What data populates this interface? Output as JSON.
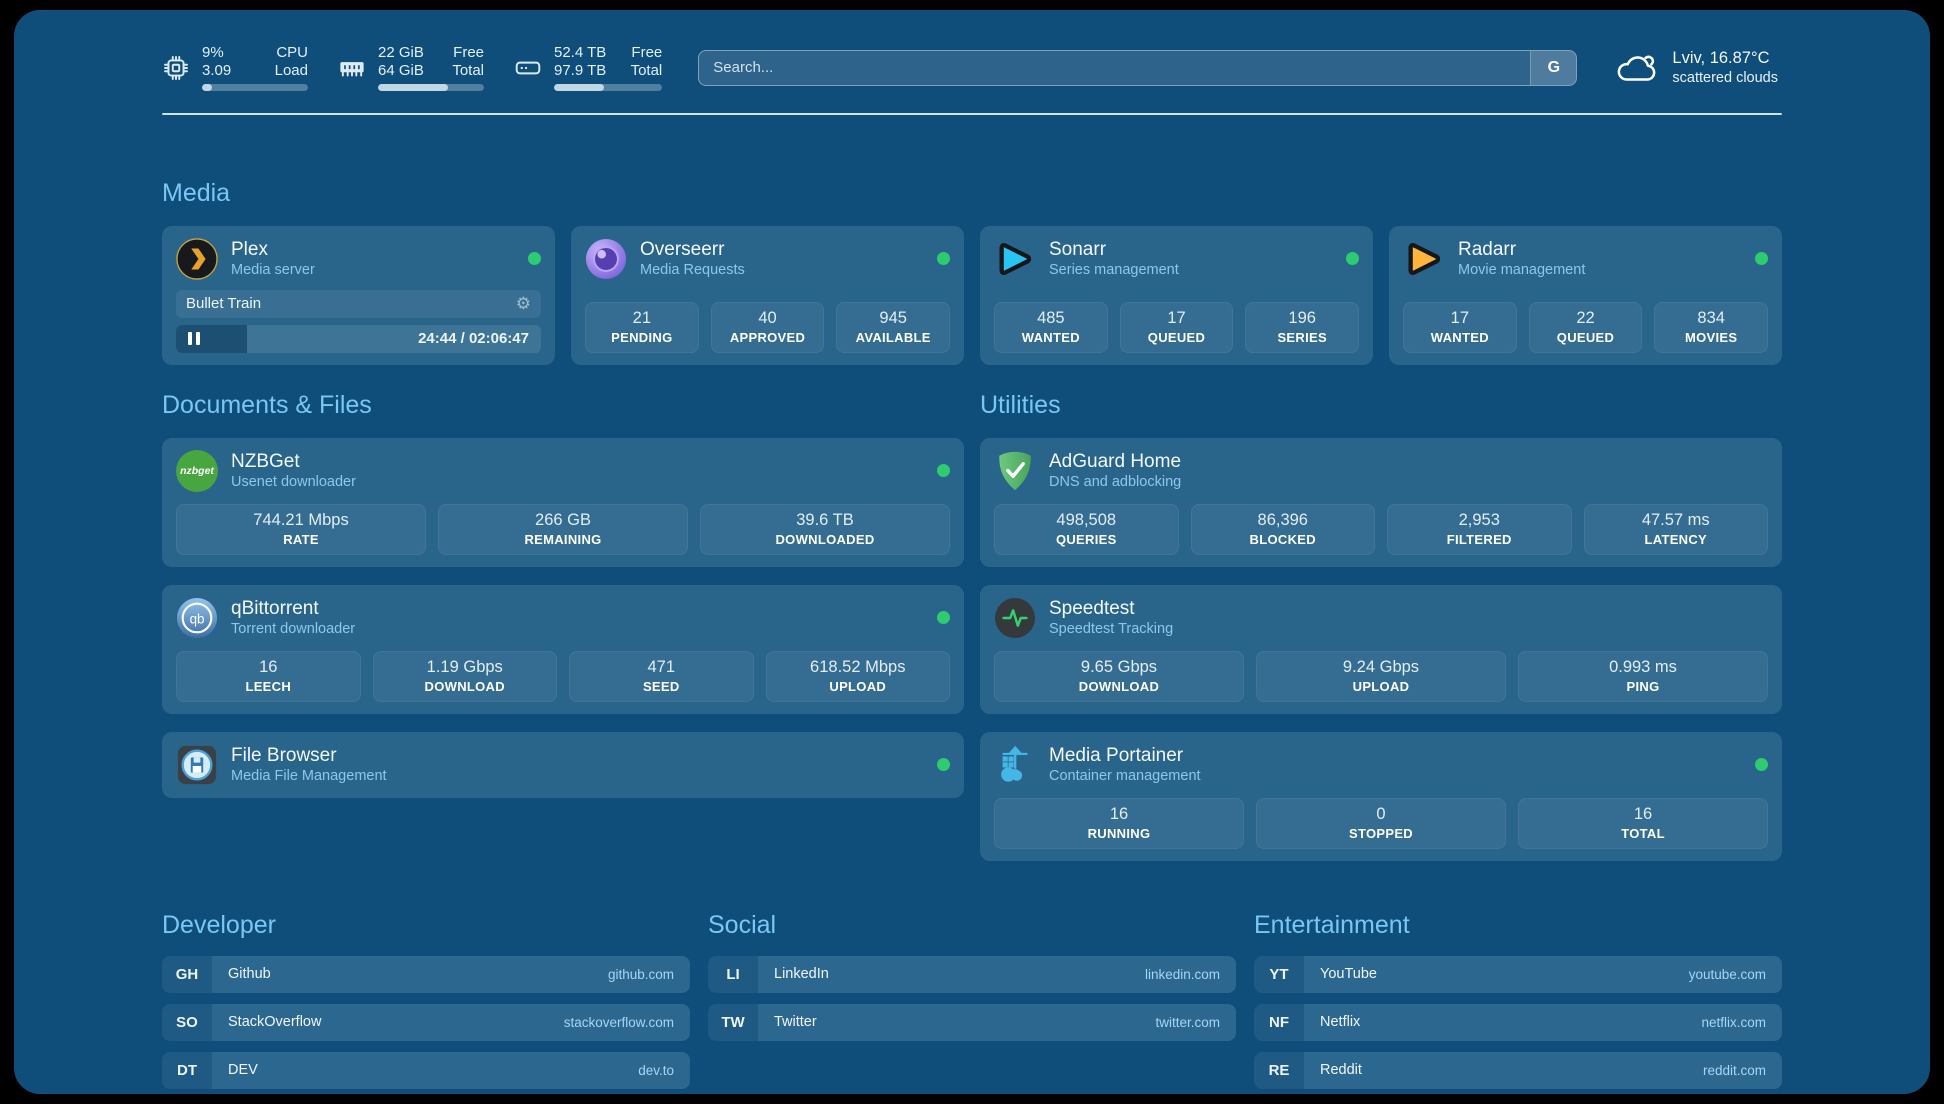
{
  "colors": {
    "status_online": "#2ecb70",
    "section_title": "#79c7f4",
    "board_background": "#0f4e7b",
    "card_background": "#29658b"
  },
  "header": {
    "system_stats": [
      {
        "icon": "cpu-icon",
        "rows": [
          {
            "value": "9%",
            "label": "CPU"
          },
          {
            "value": "3.09",
            "label": "Load"
          }
        ],
        "progress_percent": 9
      },
      {
        "icon": "memory-icon",
        "rows": [
          {
            "value": "22 GiB",
            "label": "Free"
          },
          {
            "value": "64 GiB",
            "label": "Total"
          }
        ],
        "progress_percent": 66
      },
      {
        "icon": "disk-icon",
        "rows": [
          {
            "value": "52.4 TB",
            "label": "Free"
          },
          {
            "value": "97.9 TB",
            "label": "Total"
          }
        ],
        "progress_percent": 46
      }
    ],
    "search": {
      "placeholder": "Search...",
      "engine_button_label": "G"
    },
    "weather": {
      "icon": "cloud-icon",
      "location_temperature": "Lviv, 16.87°C",
      "condition": "scattered clouds"
    }
  },
  "sections": {
    "media": {
      "title": "Media",
      "cards": [
        {
          "icon": "plex-icon",
          "name": "Plex",
          "description": "Media server",
          "status_dot": true,
          "stats": [],
          "now_playing": {
            "title": "Bullet Train",
            "time": "24:44 / 02:06:47",
            "progress_percent": 19.5
          }
        },
        {
          "icon": "overseerr-icon",
          "name": "Overseerr",
          "description": "Media Requests",
          "status_dot": true,
          "stats": [
            {
              "value": "21",
              "label": "PENDING"
            },
            {
              "value": "40",
              "label": "APPROVED"
            },
            {
              "value": "945",
              "label": "AVAILABLE"
            }
          ]
        },
        {
          "icon": "sonarr-icon",
          "name": "Sonarr",
          "description": "Series management",
          "status_dot": true,
          "stats": [
            {
              "value": "485",
              "label": "WANTED"
            },
            {
              "value": "17",
              "label": "QUEUED"
            },
            {
              "value": "196",
              "label": "SERIES"
            }
          ]
        },
        {
          "icon": "radarr-icon",
          "name": "Radarr",
          "description": "Movie management",
          "status_dot": true,
          "stats": [
            {
              "value": "17",
              "label": "WANTED"
            },
            {
              "value": "22",
              "label": "QUEUED"
            },
            {
              "value": "834",
              "label": "MOVIES"
            }
          ]
        }
      ]
    },
    "documents": {
      "title": "Documents & Files",
      "cards": [
        {
          "icon": "nzbget-icon",
          "name": "NZBGet",
          "description": "Usenet downloader",
          "status_dot": true,
          "stats": [
            {
              "value": "744.21 Mbps",
              "label": "RATE"
            },
            {
              "value": "266 GB",
              "label": "REMAINING"
            },
            {
              "value": "39.6 TB",
              "label": "DOWNLOADED"
            }
          ]
        },
        {
          "icon": "qbittorrent-icon",
          "name": "qBittorrent",
          "description": "Torrent downloader",
          "status_dot": true,
          "stats": [
            {
              "value": "16",
              "label": "LEECH"
            },
            {
              "value": "1.19 Gbps",
              "label": "DOWNLOAD"
            },
            {
              "value": "471",
              "label": "SEED"
            },
            {
              "value": "618.52 Mbps",
              "label": "UPLOAD"
            }
          ]
        },
        {
          "icon": "filebrowser-icon",
          "name": "File Browser",
          "description": "Media File Management",
          "status_dot": true,
          "stats": []
        }
      ]
    },
    "utilities": {
      "title": "Utilities",
      "cards": [
        {
          "icon": "adguard-icon",
          "name": "AdGuard Home",
          "description": "DNS and adblocking",
          "status_dot": false,
          "stats": [
            {
              "value": "498,508",
              "label": "QUERIES"
            },
            {
              "value": "86,396",
              "label": "BLOCKED"
            },
            {
              "value": "2,953",
              "label": "FILTERED"
            },
            {
              "value": "47.57 ms",
              "label": "LATENCY"
            }
          ]
        },
        {
          "icon": "speedtest-icon",
          "name": "Speedtest",
          "description": "Speedtest Tracking",
          "status_dot": false,
          "stats": [
            {
              "value": "9.65 Gbps",
              "label": "DOWNLOAD"
            },
            {
              "value": "9.24 Gbps",
              "label": "UPLOAD"
            },
            {
              "value": "0.993 ms",
              "label": "PING"
            }
          ]
        },
        {
          "icon": "portainer-icon",
          "name": "Media Portainer",
          "description": "Container management",
          "status_dot": true,
          "stats": [
            {
              "value": "16",
              "label": "RUNNING"
            },
            {
              "value": "0",
              "label": "STOPPED"
            },
            {
              "value": "16",
              "label": "TOTAL"
            }
          ]
        }
      ]
    }
  },
  "bookmarks": [
    {
      "title": "Developer",
      "items": [
        {
          "abbr": "GH",
          "name": "Github",
          "url": "github.com"
        },
        {
          "abbr": "SO",
          "name": "StackOverflow",
          "url": "stackoverflow.com"
        },
        {
          "abbr": "DT",
          "name": "DEV",
          "url": "dev.to"
        }
      ]
    },
    {
      "title": "Social",
      "items": [
        {
          "abbr": "LI",
          "name": "LinkedIn",
          "url": "linkedin.com"
        },
        {
          "abbr": "TW",
          "name": "Twitter",
          "url": "twitter.com"
        }
      ]
    },
    {
      "title": "Entertainment",
      "items": [
        {
          "abbr": "YT",
          "name": "YouTube",
          "url": "youtube.com"
        },
        {
          "abbr": "NF",
          "name": "Netflix",
          "url": "netflix.com"
        },
        {
          "abbr": "RE",
          "name": "Reddit",
          "url": "reddit.com"
        }
      ]
    }
  ]
}
